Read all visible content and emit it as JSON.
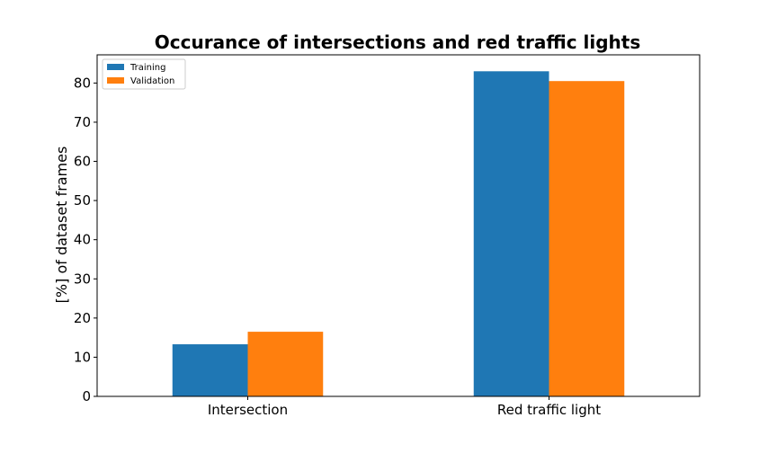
{
  "chart_data": {
    "type": "bar",
    "title": "Occurance of intersections and red traffic lights",
    "xlabel": "",
    "ylabel": "[%] of dataset frames",
    "categories": [
      "Intersection",
      "Red traffic light"
    ],
    "series": [
      {
        "name": "Training",
        "values": [
          13.3,
          83.0
        ],
        "color": "#1f77b4"
      },
      {
        "name": "Validation",
        "values": [
          16.5,
          80.5
        ],
        "color": "#ff7f0e"
      }
    ],
    "ylim": [
      0,
      87.2
    ],
    "yticks": [
      0,
      10,
      20,
      30,
      40,
      50,
      60,
      70,
      80
    ],
    "grid": false,
    "legend": "top-left"
  }
}
